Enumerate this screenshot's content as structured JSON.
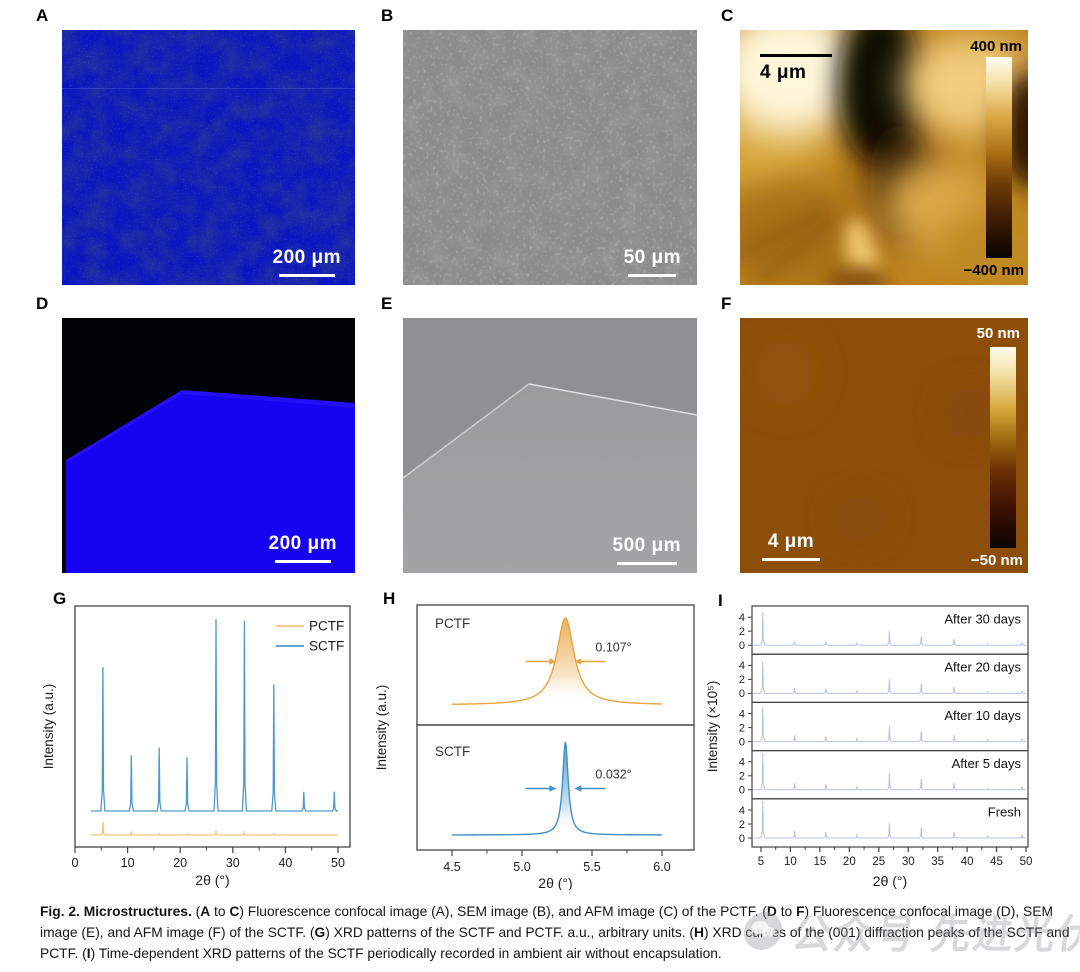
{
  "figure": {
    "panels": {
      "A": {
        "label": "A",
        "type": "fluorescence-confocal",
        "scalebar": "200 μm"
      },
      "B": {
        "label": "B",
        "type": "sem",
        "scalebar": "50 μm"
      },
      "C": {
        "label": "C",
        "type": "afm",
        "scalebar": "4 μm",
        "colorbar_top": "400 nm",
        "colorbar_bottom": "−400 nm"
      },
      "D": {
        "label": "D",
        "type": "fluorescence-confocal",
        "scalebar": "200 μm"
      },
      "E": {
        "label": "E",
        "type": "sem",
        "scalebar": "500 μm"
      },
      "F": {
        "label": "F",
        "type": "afm",
        "scalebar": "4 μm",
        "colorbar_top": "50 nm",
        "colorbar_bottom": "−50 nm"
      },
      "G": {
        "label": "G"
      },
      "H": {
        "label": "H"
      },
      "I": {
        "label": "I"
      }
    },
    "caption_segments": [
      {
        "b": true,
        "t": "Fig. 2. Microstructures."
      },
      {
        "b": false,
        "t": " ("
      },
      {
        "b": true,
        "t": "A"
      },
      {
        "b": false,
        "t": " to "
      },
      {
        "b": true,
        "t": "C"
      },
      {
        "b": false,
        "t": ") Fluorescence confocal image (A), SEM image (B), and AFM image (C) of the PCTF. ("
      },
      {
        "b": true,
        "t": "D"
      },
      {
        "b": false,
        "t": " to "
      },
      {
        "b": true,
        "t": "F"
      },
      {
        "b": false,
        "t": ") Fluorescence confocal image (D), SEM image (E), and AFM image (F) of the SCTF. ("
      },
      {
        "b": true,
        "t": "G"
      },
      {
        "b": false,
        "t": ") XRD patterns of the SCTF and PCTF. a.u., arbitrary units. ("
      },
      {
        "b": true,
        "t": "H"
      },
      {
        "b": false,
        "t": ") XRD curves of the (001) diffraction peaks of the SCTF and PCTF. ("
      },
      {
        "b": true,
        "t": "I"
      },
      {
        "b": false,
        "t": ") Time-dependent XRD patterns of the SCTF periodically recorded in ambient air without encapsulation."
      }
    ],
    "watermark": {
      "icon": "wechat-icon",
      "text": "公众号 先进光伏"
    }
  },
  "chart_data": [
    {
      "id": "G",
      "type": "line",
      "title": "XRD patterns of SCTF and PCTF",
      "xlabel": "2θ (°)",
      "ylabel": "Intensity (a.u.)",
      "xlim": [
        0,
        52
      ],
      "xticks": [
        0,
        10,
        20,
        30,
        40,
        50
      ],
      "grid": false,
      "legend_position": "top-right",
      "peak_positions": [
        5.3,
        10.7,
        16.0,
        21.3,
        26.8,
        32.2,
        37.8,
        43.5,
        49.3
      ],
      "series": [
        {
          "name": "PCTF",
          "color": "#f2c47e",
          "rel_heights": [
            0.07,
            0.012,
            0.006,
            0.005,
            0.02,
            0.012,
            0.006,
            0,
            0
          ]
        },
        {
          "name": "SCTF",
          "color": "#4d9ac9",
          "rel_heights": [
            0.75,
            0.29,
            0.33,
            0.28,
            1.0,
            0.99,
            0.66,
            0.1,
            0.1
          ]
        }
      ]
    },
    {
      "id": "H",
      "type": "line",
      "title": "XRD curves of the (001) diffraction peaks",
      "xlabel": "2θ (°)",
      "ylabel": "Intensity (a.u.)",
      "xlim": [
        4.25,
        6.25
      ],
      "xticks": [
        "4.5",
        "5.0",
        "5.5",
        "6.0"
      ],
      "grid": false,
      "panels": [
        {
          "name": "PCTF",
          "color": "#e8a43f",
          "center": 5.31,
          "fwhm_label": "0.107°",
          "gamma": 0.075
        },
        {
          "name": "SCTF",
          "color": "#3f90c6",
          "center": 5.31,
          "fwhm_label": "0.032°",
          "gamma": 0.024
        }
      ]
    },
    {
      "id": "I",
      "type": "line",
      "title": "Time-dependent XRD patterns of the SCTF",
      "xlabel": "2θ (°)",
      "ylabel": "Intensity (×10⁵)",
      "xlim": [
        3.5,
        50.5
      ],
      "xticks": [
        5,
        10,
        15,
        20,
        25,
        30,
        35,
        40,
        45,
        50
      ],
      "yticks": [
        0,
        2,
        4
      ],
      "grid": false,
      "trace_color": "#b7c0e8",
      "peak_positions": [
        5.3,
        10.7,
        16.0,
        21.3,
        26.8,
        32.2,
        37.8,
        43.5,
        49.3
      ],
      "traces": [
        {
          "label": "After 30 days",
          "heights": [
            4.7,
            0.55,
            0.5,
            0.3,
            2.0,
            1.3,
            0.85,
            0.2,
            0.35
          ]
        },
        {
          "label": "After 20 days",
          "heights": [
            4.6,
            0.8,
            0.7,
            0.4,
            2.1,
            1.4,
            0.9,
            0.2,
            0.4
          ]
        },
        {
          "label": "After 10 days",
          "heights": [
            5.0,
            0.9,
            0.75,
            0.5,
            2.2,
            1.5,
            0.9,
            0.25,
            0.45
          ]
        },
        {
          "label": "After 5 days",
          "heights": [
            5.2,
            0.95,
            0.8,
            0.5,
            2.4,
            1.6,
            1.0,
            0.25,
            0.5
          ]
        },
        {
          "label": "Fresh",
          "heights": [
            5.3,
            1.0,
            0.85,
            0.5,
            2.1,
            1.5,
            0.8,
            0.3,
            0.5
          ]
        }
      ]
    }
  ]
}
